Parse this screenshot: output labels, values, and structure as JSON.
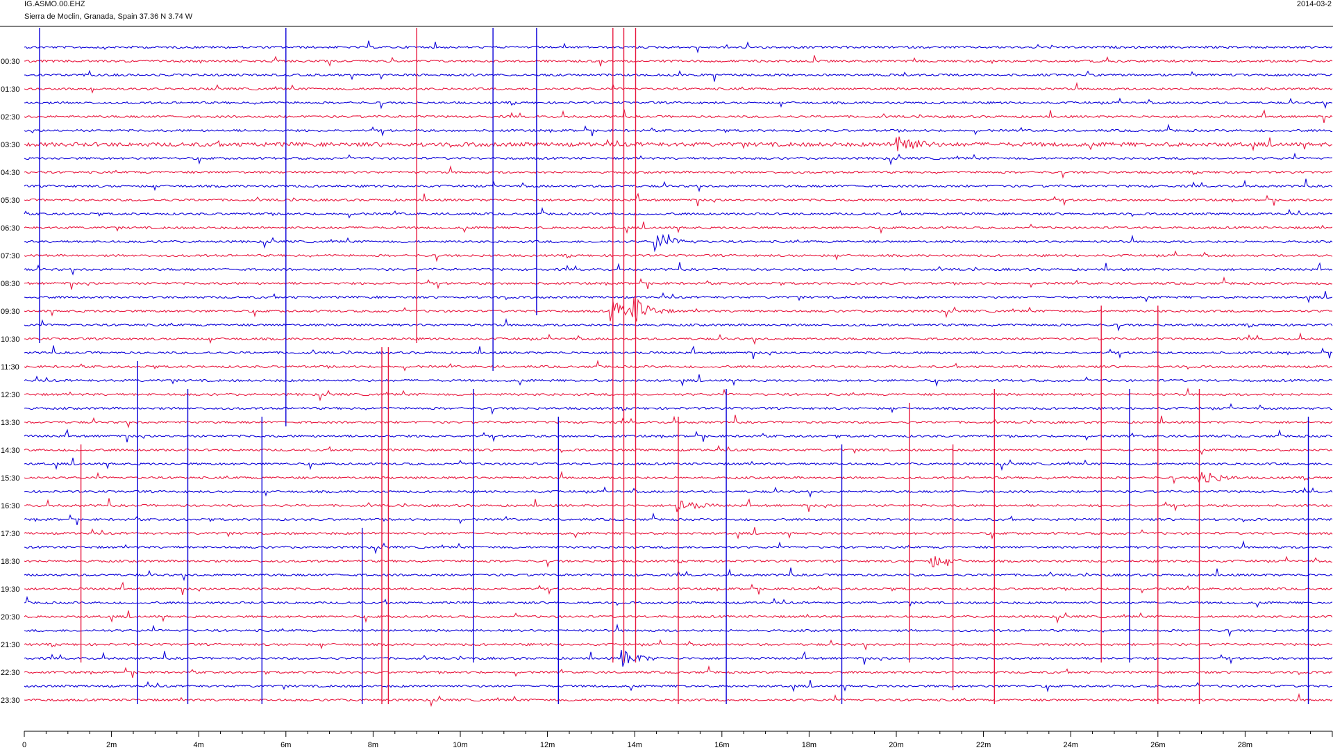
{
  "header": {
    "station": "IG.ASMO.00.EHZ",
    "location": "Sierra de Moclin, Granada, Spain  37.36 N 3.74 W",
    "date": "2014-03-2"
  },
  "colors": {
    "blue": "#0b00d8",
    "red": "#e8183f",
    "axis": "#000000"
  },
  "chart_data": {
    "type": "line",
    "title": "IG.ASMO.00.EHZ",
    "subtitle": "Sierra de Moclin, Granada, Spain  37.36 N 3.74 W",
    "xlabel": "",
    "ylabel": "",
    "xlim_minutes": [
      0,
      30
    ],
    "x_tick_labels": [
      "0",
      "2m",
      "4m",
      "6m",
      "8m",
      "10m",
      "12m",
      "14m",
      "16m",
      "18m",
      "20m",
      "22m",
      "24m",
      "26m",
      "28m"
    ],
    "y_tick_labels": [
      "00:30",
      "01:30",
      "02:30",
      "03:30",
      "04:30",
      "05:30",
      "06:30",
      "07:30",
      "08:30",
      "09:30",
      "10:30",
      "11:30",
      "12:30",
      "13:30",
      "14:30",
      "15:30",
      "16:30",
      "17:30",
      "18:30",
      "19:30",
      "20:30",
      "21:30",
      "22:30",
      "23:30"
    ],
    "trace_count": 48,
    "trace_minutes": 30,
    "trace_colors": [
      "blue",
      "red"
    ],
    "long_spikes": [
      {
        "t": 0.35,
        "from": 0,
        "to": 21,
        "color": "blue"
      },
      {
        "t": 6.0,
        "from": 0,
        "to": 27,
        "color": "blue"
      },
      {
        "t": 9.0,
        "from": 0,
        "to": 21,
        "color": "red"
      },
      {
        "t": 10.75,
        "from": 0,
        "to": 23,
        "color": "blue"
      },
      {
        "t": 11.75,
        "from": 0,
        "to": 19,
        "color": "blue"
      },
      {
        "t": 13.5,
        "from": 0,
        "to": 44,
        "color": "red"
      },
      {
        "t": 13.75,
        "from": 0,
        "to": 44,
        "color": "red"
      },
      {
        "t": 14.02,
        "from": 0,
        "to": 44,
        "color": "red"
      },
      {
        "t": 26.95,
        "from": 26,
        "to": 47,
        "color": "red"
      },
      {
        "t": 8.2,
        "from": 23,
        "to": 47,
        "color": "red"
      },
      {
        "t": 8.35,
        "from": 23,
        "to": 47,
        "color": "red"
      },
      {
        "t": 15.0,
        "from": 28,
        "to": 47,
        "color": "red"
      },
      {
        "t": 10.3,
        "from": 26,
        "to": 44,
        "color": "blue"
      },
      {
        "t": 2.6,
        "from": 24,
        "to": 47,
        "color": "blue"
      },
      {
        "t": 3.75,
        "from": 26,
        "to": 47,
        "color": "blue"
      },
      {
        "t": 5.45,
        "from": 28,
        "to": 47,
        "color": "blue"
      },
      {
        "t": 7.75,
        "from": 36,
        "to": 47,
        "color": "blue"
      },
      {
        "t": 12.25,
        "from": 28,
        "to": 47,
        "color": "blue"
      },
      {
        "t": 16.1,
        "from": 26,
        "to": 47,
        "color": "blue"
      },
      {
        "t": 18.75,
        "from": 30,
        "to": 47,
        "color": "blue"
      },
      {
        "t": 20.3,
        "from": 27,
        "to": 44,
        "color": "red"
      },
      {
        "t": 21.3,
        "from": 30,
        "to": 46,
        "color": "red"
      },
      {
        "t": 22.25,
        "from": 26,
        "to": 47,
        "color": "red"
      },
      {
        "t": 25.35,
        "from": 26,
        "to": 44,
        "color": "blue"
      },
      {
        "t": 29.45,
        "from": 28,
        "to": 47,
        "color": "blue"
      },
      {
        "t": 26.0,
        "from": 20,
        "to": 47,
        "color": "red"
      },
      {
        "t": 1.3,
        "from": 30,
        "to": 44,
        "color": "red"
      },
      {
        "t": 24.7,
        "from": 20,
        "to": 44,
        "color": "red"
      }
    ],
    "bursts": [
      {
        "t": 20.05,
        "trace": 7,
        "amp": 20
      },
      {
        "t": 14.0,
        "trace": 19,
        "amp": 18
      },
      {
        "t": 13.5,
        "trace": 19,
        "amp": 14
      },
      {
        "t": 13.75,
        "trace": 44,
        "amp": 12
      },
      {
        "t": 27.0,
        "trace": 31,
        "amp": 14
      },
      {
        "t": 14.5,
        "trace": 14,
        "amp": 14
      },
      {
        "t": 15.0,
        "trace": 33,
        "amp": 12
      },
      {
        "t": 20.8,
        "trace": 37,
        "amp": 10
      }
    ]
  }
}
